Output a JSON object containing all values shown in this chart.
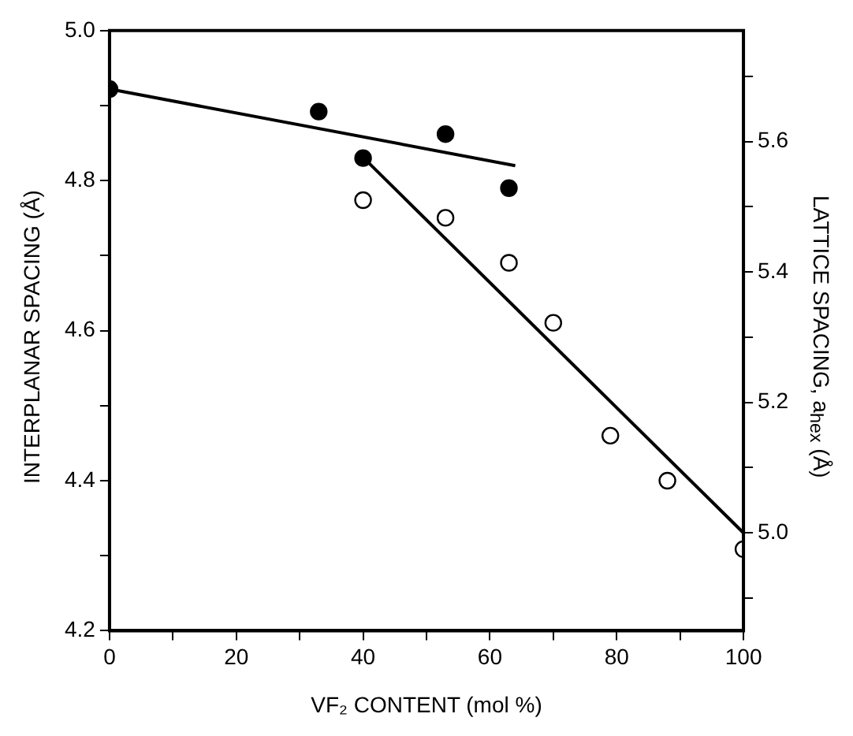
{
  "chart_data": {
    "type": "scatter",
    "xlabel": "VF₂ CONTENT (mol %)",
    "ylabel": "INTERPLANAR SPACING (Å)",
    "y2label": "LATTICE SPACING, a$_{hex}$ (Å)",
    "series": [
      {
        "color": "#000000",
        "marker": "circle",
        "x": [
          0,
          33,
          40,
          53,
          63
        ],
        "values": [
          4.922,
          4.892,
          4.83,
          4.862,
          4.79
        ]
      },
      {
        "color": "#000000",
        "marker": "circle",
        "axis": "y2",
        "x": [
          40,
          53,
          63,
          70,
          79,
          88,
          100
        ],
        "values": [
          5.51,
          5.483,
          5.414,
          5.322,
          5.149,
          5.08,
          4.975
        ]
      },
      {
        "type": "line",
        "color": "#000000",
        "marker": "none",
        "line_style": "solid",
        "x": [
          0,
          64
        ],
        "values": [
          4.922,
          4.82
        ]
      },
      {
        "type": "line",
        "color": "#000000",
        "marker": "none",
        "line_style": "solid",
        "axis": "y2",
        "x": [
          41,
          100
        ],
        "values": [
          5.566,
          5.0
        ]
      }
    ],
    "xlim": [
      0,
      100
    ],
    "xticks": [
      0,
      {
        "value": 10,
        "label": null
      },
      20,
      {
        "value": 30,
        "label": null
      },
      40,
      {
        "value": 50,
        "label": null
      },
      60,
      {
        "value": 70,
        "label": null
      },
      80,
      {
        "value": 90,
        "label": null
      },
      100
    ],
    "ylim": [
      4.2,
      5.0
    ],
    "yticks": [
      4.2,
      {
        "value": 4.3,
        "label": null
      },
      4.4,
      {
        "value": 4.5,
        "label": null
      },
      4.6,
      {
        "value": 4.7,
        "label": null
      },
      4.8,
      {
        "value": 4.9,
        "label": null
      },
      {
        "value": 5,
        "label": "5.0"
      }
    ],
    "y2lim": [
      4.85,
      5.77
    ],
    "y2ticks": [
      {
        "value": 4.9,
        "label": null
      },
      {
        "value": 5,
        "label": "5.0"
      },
      {
        "value": 5.1,
        "label": null
      },
      5.2,
      {
        "value": 5.3,
        "label": null
      },
      5.4,
      {
        "value": 5.5,
        "label": null
      },
      5.6,
      {
        "value": 5.7,
        "label": null
      }
    ],
    "grid": false,
    "legend": false
  }
}
